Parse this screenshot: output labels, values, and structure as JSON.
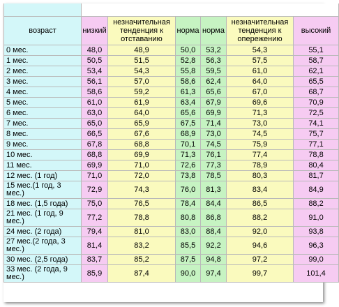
{
  "headers": {
    "age": "возраст",
    "low": "низкий",
    "slight_lag": "незначительная тенденция к отставанию",
    "norm1": "норма",
    "norm2": "норма",
    "slight_ahead": "незначительная тенденция к опережению",
    "high": "высокий"
  },
  "rows": [
    {
      "age": "0 мес.",
      "v": [
        "48,0",
        "48,9",
        "50,0",
        "53,2",
        "54,3",
        "55,1"
      ]
    },
    {
      "age": "1 мес.",
      "v": [
        "50,5",
        "51,5",
        "52,8",
        "56,3",
        "57,5",
        "58,7"
      ]
    },
    {
      "age": "2 мес.",
      "v": [
        "53,4",
        "54,3",
        "55,8",
        "59,5",
        "61,0",
        "62,1"
      ]
    },
    {
      "age": "3 мес.",
      "v": [
        "56,1",
        "57,0",
        "58,6",
        "62,4",
        "64,0",
        "65,5"
      ]
    },
    {
      "age": "4 мес.",
      "v": [
        "58,6",
        "59,2",
        "61,3",
        "65,6",
        "67,0",
        "68,7"
      ]
    },
    {
      "age": "5 мес.",
      "v": [
        "61,0",
        "61,9",
        "63,4",
        "67,9",
        "69,6",
        "70,9"
      ]
    },
    {
      "age": "6 мес.",
      "v": [
        "63,0",
        "64,0",
        "65,6",
        "69,9",
        "71,3",
        "72,5"
      ]
    },
    {
      "age": "7 мес.",
      "v": [
        "65,0",
        "65,9",
        "67,5",
        "71,4",
        "73,0",
        "74,1"
      ]
    },
    {
      "age": "8 мес.",
      "v": [
        "66,5",
        "67,6",
        "68,9",
        "73,0",
        "74,5",
        "75,7"
      ]
    },
    {
      "age": "9 мес.",
      "v": [
        "67,8",
        "68,8",
        "70,1",
        "74,5",
        "75,9",
        "77,1"
      ]
    },
    {
      "age": "10 мес.",
      "v": [
        "68,8",
        "69,9",
        "71,3",
        "76,1",
        "77,4",
        "78,8"
      ]
    },
    {
      "age": "11 мес.",
      "v": [
        "69,9",
        "71,0",
        "72,6",
        "77,3",
        "78,9",
        "80,4"
      ]
    },
    {
      "age": "12 мес. (1 год)",
      "v": [
        "71,0",
        "72,0",
        "73,8",
        "78,5",
        "80,3",
        "81,7"
      ]
    },
    {
      "age": "15 мес.(1 год, 3 мес.)",
      "v": [
        "72,9",
        "74,3",
        "76,0",
        "81,3",
        "83,4",
        "84,9"
      ]
    },
    {
      "age": "18 мес. (1,5 года)",
      "v": [
        "75,0",
        "76,5",
        "78,4",
        "84,4",
        "86,5",
        "88,2"
      ]
    },
    {
      "age": "21 мес. (1 год, 9 мес.)",
      "v": [
        "77,2",
        "78,8",
        "80,8",
        "86,8",
        "88,2",
        "91,0"
      ]
    },
    {
      "age": "24 мес. (2 года)",
      "v": [
        "79,4",
        "81,0",
        "83,0",
        "88,4",
        "92,0",
        "93,8"
      ]
    },
    {
      "age": "27 мес.(2 года, 3 мес.)",
      "v": [
        "81,4",
        "83,2",
        "85,5",
        "92,2",
        "94,6",
        "96,3"
      ]
    },
    {
      "age": "30 мес. (2,5 года)",
      "v": [
        "83,7",
        "85,2",
        "87,5",
        "94,8",
        "97,2",
        "99,0"
      ]
    },
    {
      "age": "33 мес. (2 года, 9 мес.)",
      "v": [
        "85,9",
        "87,4",
        "90,0",
        "97,4",
        "99,7",
        "101,4"
      ]
    }
  ]
}
